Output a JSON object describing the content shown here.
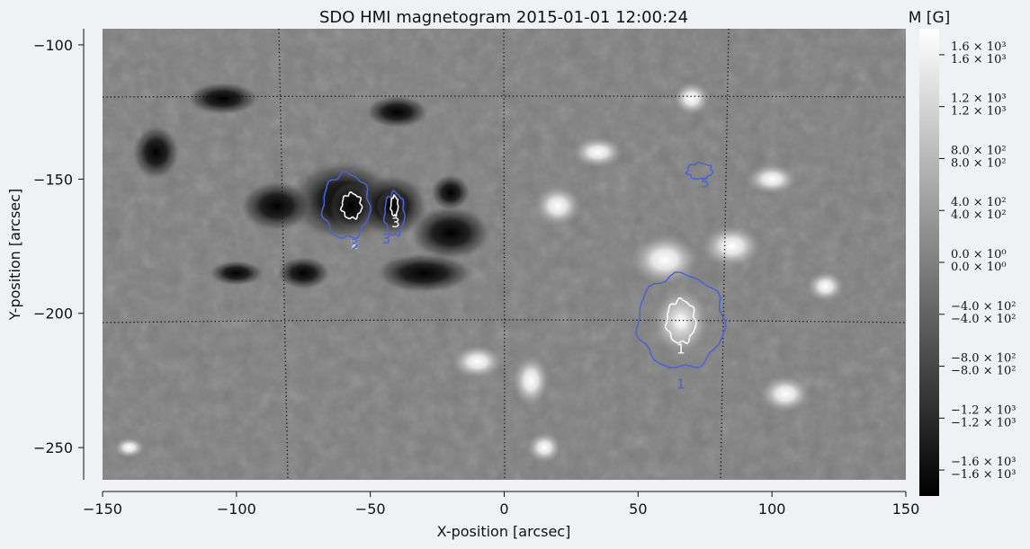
{
  "chart_data": {
    "type": "heatmap",
    "title": "SDO HMI magnetogram 2015-01-01 12:00:24",
    "xlabel": "X-position [arcsec]",
    "ylabel": "Y-position [arcsec]",
    "xlim": [
      -150,
      150
    ],
    "ylim": [
      -262,
      -94
    ],
    "x_ticks": [
      -150,
      -100,
      -50,
      0,
      50,
      100,
      150
    ],
    "y_ticks": [
      -100,
      -150,
      -200,
      -250
    ],
    "x_tick_labels": [
      "−150",
      "−100",
      "−50",
      "0",
      "50",
      "100",
      "150"
    ],
    "y_tick_labels": [
      "−100",
      "−150",
      "−200",
      "−250"
    ],
    "grid": "dotted heliographic grid",
    "colormap": "grayscale",
    "colorbar": {
      "label": "M [G]",
      "range": [
        -1800,
        1800
      ],
      "ticks": [
        1600,
        1200,
        800,
        400,
        0,
        -400,
        -800,
        -1200,
        -1600
      ],
      "tick_labels_upper": [
        "1.6 × 10³",
        "1.2 × 10³",
        "8.0 × 10²",
        "4.0 × 10²",
        "0.0 × 10⁰",
        "−4.0 × 10²",
        "−8.0 × 10²",
        "−1.2 × 10³",
        "−1.6 × 10³"
      ],
      "tick_labels_lower": [
        "1.6 × 10³",
        "1.2 × 10³",
        "8.0 × 10²",
        "4.0 × 10²",
        "0.0 × 10⁰",
        "−4.0 × 10²",
        "−8.0 × 10²",
        "−1.2 × 10³",
        "−1.6 × 10³"
      ]
    },
    "regions": [
      {
        "label": "1",
        "polarity": "positive",
        "x": 66,
        "y": -203,
        "outer_contour": "#4b63d3",
        "inner_contour": "#ffffff"
      },
      {
        "label": "2",
        "polarity": "negative",
        "x": -57,
        "y": -160,
        "outer_contour": "#4b63d3",
        "inner_contour": "#ffffff"
      },
      {
        "label": "3",
        "polarity": "negative",
        "x": -41,
        "y": -160,
        "outer_contour": "#4b63d3",
        "inner_contour": "#ffffff"
      },
      {
        "label": "5",
        "polarity": "positive",
        "x": 73,
        "y": -147,
        "outer_contour": "#4b63d3",
        "inner_contour": null
      }
    ],
    "extra_region_labels": [
      {
        "label": "1",
        "x": 66,
        "y": -228
      },
      {
        "label": "3",
        "x": -56,
        "y": -176
      },
      {
        "label": "3",
        "x": -44,
        "y": -174
      }
    ]
  },
  "colors": {
    "background": "#eff1f5",
    "contour_outer": "#4b63d3",
    "contour_inner": "#ffffff",
    "grid": "#111111"
  }
}
